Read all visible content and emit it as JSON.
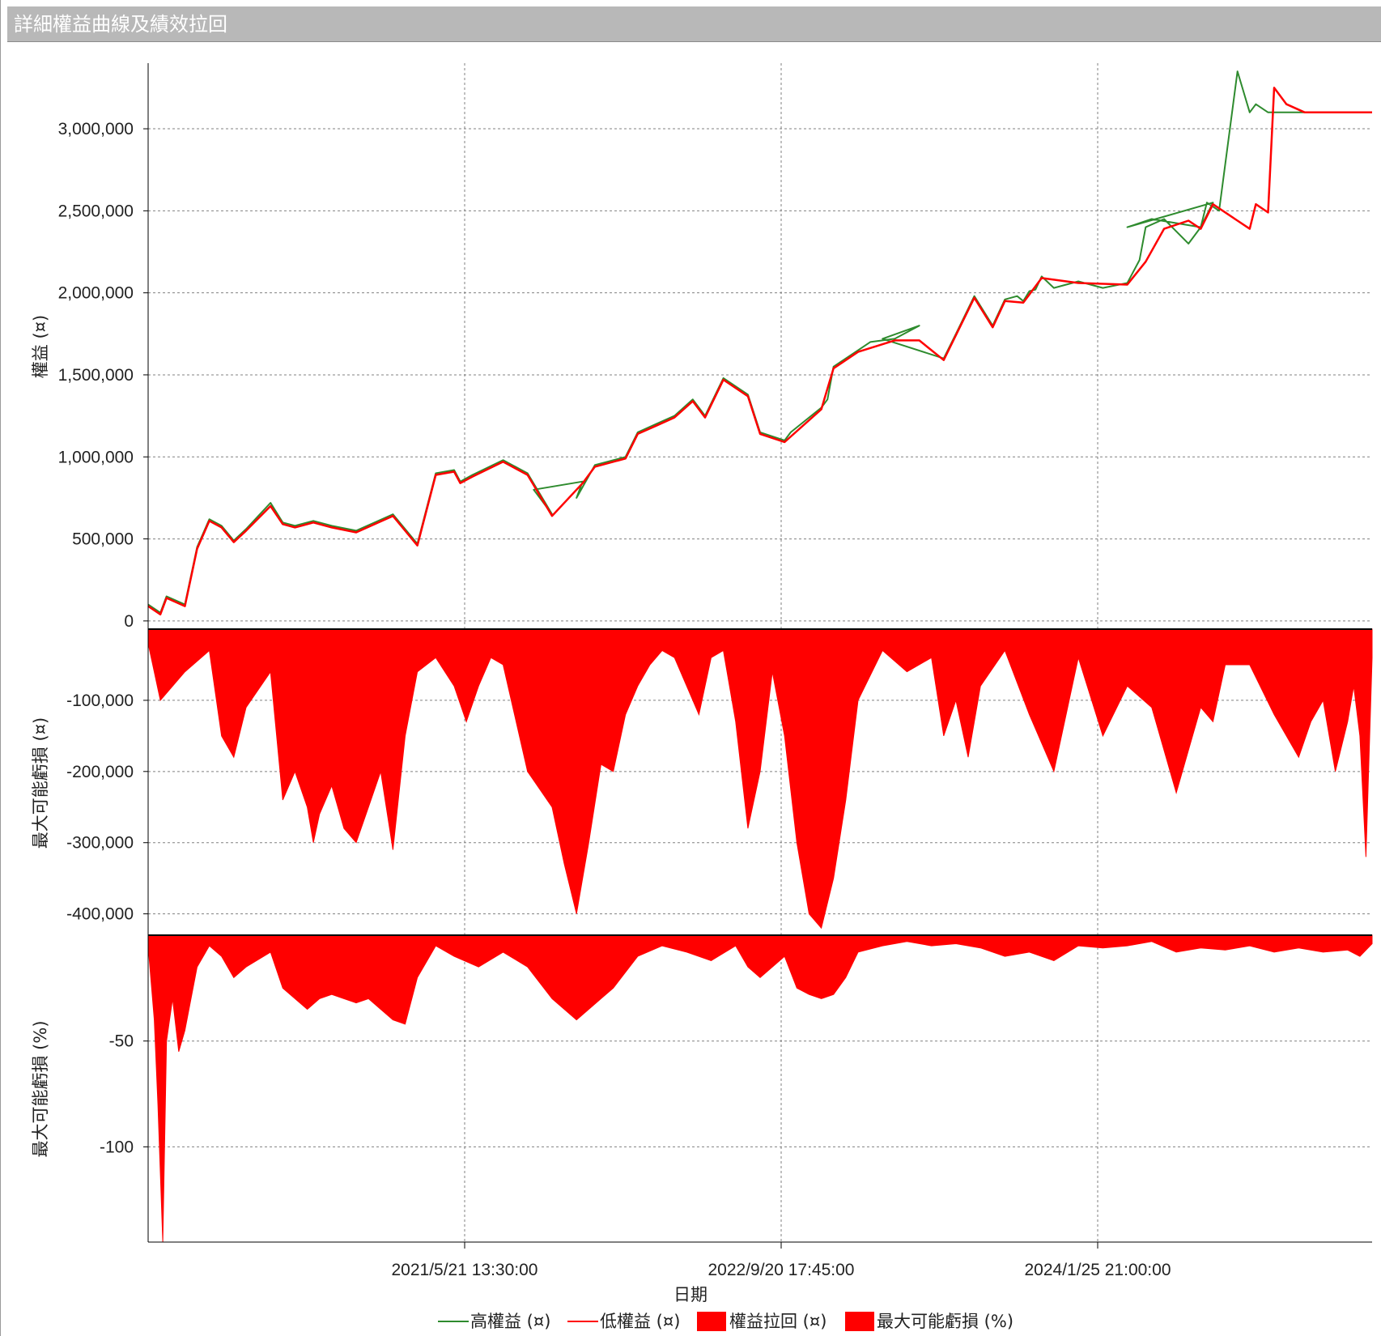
{
  "window": {
    "title": "詳細權益曲線及績效拉回"
  },
  "colors": {
    "high_equity": "#2e8b2e",
    "low_equity": "#ff0000",
    "drawdown_fill": "#ff0000",
    "grid": "#808080",
    "title_bar": "#b8b8b8"
  },
  "chart_data": {
    "type": "line",
    "xlabel": "日期",
    "x_tick_labels": [
      "2021/5/21 13:30:00",
      "2022/9/20 17:45:00",
      "2024/1/25 21:00:00"
    ],
    "grid": true,
    "legend_position": "bottom",
    "legend": [
      "高權益 (¤)",
      "低權益 (¤)",
      "權益拉回 (¤)",
      "最大可能虧損 (%)"
    ],
    "panels": [
      {
        "name": "equity",
        "ylabel": "權益 (¤)",
        "ylim": [
          -50000,
          3400000
        ],
        "y_ticks": [
          0,
          500000,
          1000000,
          1500000,
          2000000,
          2500000,
          3000000
        ],
        "y_tick_labels": [
          "0",
          "500,000",
          "1,000,000",
          "1,500,000",
          "2,000,000",
          "2,500,000",
          "3,000,000"
        ],
        "series": [
          {
            "name": "高權益 (¤)",
            "x_fraction": [
              0,
              0.01,
              0.015,
              0.03,
              0.04,
              0.05,
              0.06,
              0.07,
              0.08,
              0.1,
              0.11,
              0.12,
              0.135,
              0.15,
              0.17,
              0.2,
              0.22,
              0.235,
              0.25,
              0.255,
              0.265,
              0.29,
              0.31,
              0.33,
              0.315,
              0.355,
              0.35,
              0.365,
              0.39,
              0.4,
              0.415,
              0.43,
              0.445,
              0.455,
              0.47,
              0.49,
              0.5,
              0.52,
              0.525,
              0.55,
              0.555,
              0.56,
              0.58,
              0.59,
              0.61,
              0.63,
              0.6,
              0.65,
              0.66,
              0.675,
              0.69,
              0.7,
              0.71,
              0.715,
              0.72,
              0.725,
              0.73,
              0.74,
              0.76,
              0.78,
              0.8,
              0.81,
              0.815,
              0.83,
              0.85,
              0.86,
              0.87,
              0.8,
              0.82,
              0.86,
              0.865,
              0.875,
              0.89,
              0.9,
              0.905,
              0.915,
              0.92,
              0.93,
              0.945,
              0.955,
              0.965,
              0.975,
              0.98,
              0.985,
              0.988,
              0.992,
              0.995,
              0.997,
              1.0
            ],
            "y": [
              100000,
              50000,
              150000,
              100000,
              450000,
              620000,
              580000,
              490000,
              560000,
              720000,
              600000,
              580000,
              610000,
              580000,
              550000,
              650000,
              470000,
              900000,
              920000,
              850000,
              890000,
              980000,
              900000,
              650000,
              800000,
              850000,
              750000,
              950000,
              1000000,
              1150000,
              1200000,
              1250000,
              1350000,
              1250000,
              1480000,
              1380000,
              1150000,
              1100000,
              1150000,
              1300000,
              1350000,
              1550000,
              1650000,
              1700000,
              1720000,
              1800000,
              1720000,
              1600000,
              1750000,
              1980000,
              1800000,
              1960000,
              1980000,
              1950000,
              2010000,
              2020000,
              2100000,
              2030000,
              2070000,
              2030000,
              2060000,
              2200000,
              2400000,
              2450000,
              2300000,
              2400000,
              2550000,
              2400000,
              2450000,
              2400000,
              2550000,
              2500000,
              3350000,
              3100000,
              3150000,
              3100000,
              3100000,
              3100000,
              3100000,
              3100000,
              3100000,
              3100000,
              3100000,
              3100000,
              3100000,
              3100000,
              3100000,
              3100000,
              3100000
            ]
          },
          {
            "name": "低權益 (¤)",
            "x_fraction": [
              0,
              0.01,
              0.015,
              0.03,
              0.04,
              0.05,
              0.06,
              0.07,
              0.08,
              0.1,
              0.11,
              0.12,
              0.135,
              0.15,
              0.17,
              0.2,
              0.22,
              0.235,
              0.25,
              0.255,
              0.265,
              0.29,
              0.31,
              0.33,
              0.355,
              0.365,
              0.39,
              0.4,
              0.415,
              0.43,
              0.445,
              0.455,
              0.47,
              0.49,
              0.5,
              0.52,
              0.55,
              0.56,
              0.58,
              0.61,
              0.63,
              0.65,
              0.675,
              0.69,
              0.7,
              0.715,
              0.73,
              0.76,
              0.8,
              0.815,
              0.83,
              0.85,
              0.86,
              0.87,
              0.89,
              0.9,
              0.905,
              0.915,
              0.92,
              0.93,
              0.945,
              0.965,
              0.98,
              0.99,
              0.993,
              0.995,
              1.0
            ],
            "y": [
              90000,
              40000,
              140000,
              90000,
              440000,
              610000,
              570000,
              480000,
              550000,
              700000,
              590000,
              570000,
              600000,
              570000,
              540000,
              640000,
              460000,
              890000,
              910000,
              840000,
              880000,
              970000,
              890000,
              640000,
              840000,
              940000,
              990000,
              1140000,
              1190000,
              1240000,
              1340000,
              1240000,
              1470000,
              1370000,
              1140000,
              1090000,
              1290000,
              1540000,
              1640000,
              1710000,
              1710000,
              1590000,
              1970000,
              1790000,
              1950000,
              1940000,
              2090000,
              2060000,
              2050000,
              2190000,
              2390000,
              2440000,
              2390000,
              2540000,
              2440000,
              2390000,
              2540000,
              2490000,
              3250000,
              3150000,
              3100000,
              3100000,
              3100000,
              3100000,
              3100000,
              3100000,
              3100000
            ]
          }
        ]
      },
      {
        "name": "drawdown_value",
        "ylabel": "最大可能虧損 (¤)",
        "ylim": [
          -430000,
          0
        ],
        "y_ticks": [
          -100000,
          -200000,
          -300000,
          -400000
        ],
        "y_tick_labels": [
          "-100,000",
          "-200,000",
          "-300,000",
          "-400,000"
        ],
        "series": [
          {
            "name": "權益拉回 (¤)",
            "x_fraction": [
              0,
              0.01,
              0.03,
              0.05,
              0.06,
              0.07,
              0.08,
              0.1,
              0.11,
              0.12,
              0.13,
              0.135,
              0.14,
              0.15,
              0.16,
              0.17,
              0.18,
              0.19,
              0.2,
              0.21,
              0.22,
              0.235,
              0.25,
              0.26,
              0.27,
              0.28,
              0.29,
              0.31,
              0.33,
              0.34,
              0.35,
              0.36,
              0.37,
              0.38,
              0.39,
              0.4,
              0.41,
              0.42,
              0.43,
              0.44,
              0.45,
              0.46,
              0.47,
              0.48,
              0.49,
              0.5,
              0.51,
              0.52,
              0.53,
              0.54,
              0.55,
              0.56,
              0.57,
              0.58,
              0.6,
              0.62,
              0.64,
              0.65,
              0.66,
              0.67,
              0.68,
              0.7,
              0.72,
              0.74,
              0.75,
              0.76,
              0.78,
              0.8,
              0.82,
              0.84,
              0.85,
              0.86,
              0.87,
              0.88,
              0.9,
              0.92,
              0.94,
              0.95,
              0.96,
              0.97,
              0.98,
              0.985,
              0.99,
              0.995,
              1.0
            ],
            "y": [
              -20000,
              -100000,
              -60000,
              -30000,
              -150000,
              -180000,
              -110000,
              -60000,
              -240000,
              -200000,
              -250000,
              -300000,
              -260000,
              -220000,
              -280000,
              -300000,
              -250000,
              -200000,
              -310000,
              -150000,
              -60000,
              -40000,
              -80000,
              -130000,
              -80000,
              -40000,
              -50000,
              -200000,
              -250000,
              -330000,
              -400000,
              -300000,
              -190000,
              -200000,
              -120000,
              -80000,
              -50000,
              -30000,
              -40000,
              -80000,
              -120000,
              -40000,
              -30000,
              -130000,
              -280000,
              -200000,
              -60000,
              -150000,
              -300000,
              -400000,
              -420000,
              -350000,
              -240000,
              -100000,
              -30000,
              -60000,
              -40000,
              -150000,
              -100000,
              -180000,
              -80000,
              -30000,
              -120000,
              -200000,
              -120000,
              -40000,
              -150000,
              -80000,
              -110000,
              -230000,
              -170000,
              -110000,
              -130000,
              -50000,
              -50000,
              -120000,
              -180000,
              -130000,
              -100000,
              -200000,
              -130000,
              -80000,
              -150000,
              -320000,
              -40000
            ]
          }
        ]
      },
      {
        "name": "drawdown_pct",
        "ylabel": "最大可能虧損 (%)",
        "ylim": [
          -145,
          0
        ],
        "y_ticks": [
          -50,
          -100
        ],
        "y_tick_labels": [
          "-50",
          "-100"
        ],
        "series": [
          {
            "name": "最大可能虧損 (%)",
            "x_fraction": [
              0,
              0.005,
              0.008,
              0.012,
              0.015,
              0.02,
              0.025,
              0.03,
              0.04,
              0.05,
              0.06,
              0.07,
              0.08,
              0.1,
              0.11,
              0.12,
              0.13,
              0.14,
              0.15,
              0.16,
              0.17,
              0.18,
              0.19,
              0.2,
              0.21,
              0.22,
              0.235,
              0.25,
              0.27,
              0.29,
              0.31,
              0.33,
              0.35,
              0.36,
              0.37,
              0.38,
              0.4,
              0.42,
              0.44,
              0.46,
              0.48,
              0.49,
              0.5,
              0.51,
              0.52,
              0.53,
              0.54,
              0.55,
              0.56,
              0.57,
              0.58,
              0.6,
              0.62,
              0.64,
              0.66,
              0.68,
              0.7,
              0.72,
              0.74,
              0.76,
              0.78,
              0.8,
              0.82,
              0.84,
              0.86,
              0.88,
              0.9,
              0.92,
              0.94,
              0.96,
              0.98,
              0.99,
              1.0
            ],
            "y": [
              -5,
              -40,
              -80,
              -145,
              -50,
              -30,
              -55,
              -45,
              -15,
              -5,
              -10,
              -20,
              -15,
              -8,
              -25,
              -30,
              -35,
              -30,
              -28,
              -30,
              -32,
              -30,
              -35,
              -40,
              -42,
              -20,
              -5,
              -10,
              -15,
              -8,
              -15,
              -30,
              -40,
              -35,
              -30,
              -25,
              -10,
              -5,
              -8,
              -12,
              -5,
              -15,
              -20,
              -15,
              -10,
              -25,
              -28,
              -30,
              -28,
              -20,
              -8,
              -5,
              -3,
              -5,
              -4,
              -6,
              -10,
              -8,
              -12,
              -5,
              -6,
              -5,
              -3,
              -8,
              -6,
              -7,
              -5,
              -8,
              -6,
              -8,
              -7,
              -10,
              -4
            ]
          }
        ]
      }
    ]
  }
}
